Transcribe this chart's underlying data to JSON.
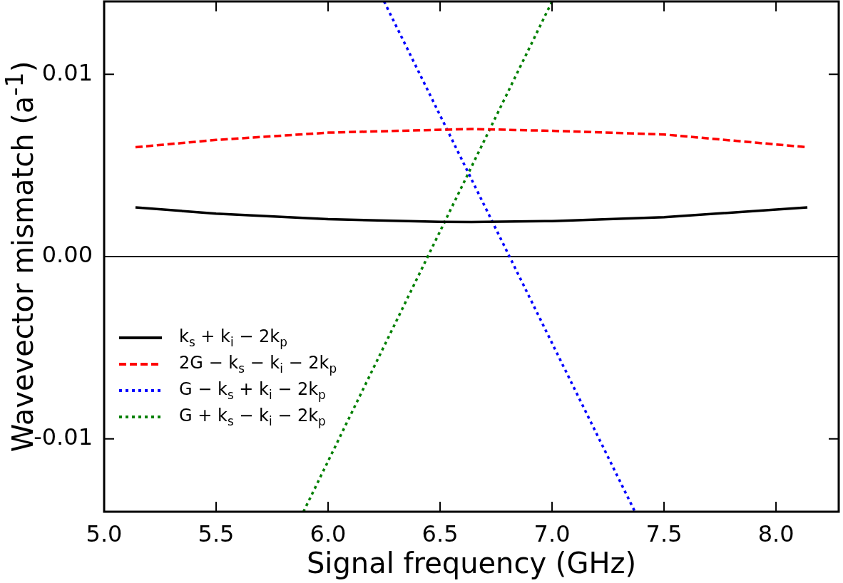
{
  "chart_data": {
    "type": "line",
    "xlabel": "Signal frequency (GHz)",
    "ylabel": "Wavevector mismatch (a$^{-1}$)",
    "xlim": [
      5.0,
      8.28
    ],
    "ylim": [
      -0.014,
      0.014
    ],
    "xticks": [
      {
        "value": 5,
        "label": "5.0"
      },
      5.5,
      {
        "value": 6,
        "label": "6.0"
      },
      6.5,
      {
        "value": 7,
        "label": "7.0"
      },
      7.5,
      {
        "value": 8,
        "label": "8.0"
      }
    ],
    "yticks": [
      -0.01,
      {
        "value": 0,
        "label": "0.00"
      },
      0.01
    ],
    "grid": false,
    "legend": "center left",
    "marker": "none",
    "ref_lines": [
      {
        "axis": "y",
        "value": 0,
        "color": "#000000",
        "line_style": "solid"
      }
    ],
    "series": [
      {
        "name": "k$_{s}$ + k$_{i}$ − 2k$_{p}$",
        "color": "#000000",
        "line_style": "solid",
        "x": [
          5.14,
          5.5,
          6.0,
          6.5,
          6.64,
          7.0,
          7.5,
          8.14
        ],
        "values": [
          0.0027,
          0.00236,
          0.00205,
          0.00191,
          0.0019,
          0.00195,
          0.00216,
          0.0027
        ]
      },
      {
        "name": "2G − k$_{s}$ − k$_{i}$ − 2k$_{p}$",
        "color": "#ff0000",
        "line_style": "dashed",
        "x": [
          5.14,
          5.5,
          6.0,
          6.64,
          7.0,
          7.5,
          8.14
        ],
        "values": [
          0.006,
          0.0064,
          0.0068,
          0.007,
          0.0069,
          0.0067,
          0.006
        ]
      },
      {
        "name": "G − k$_{s}$ + k$_{i}$ − 2k$_{p}$",
        "color": "#0000ff",
        "line_style": "dotted",
        "x": [
          6.25,
          7.37
        ],
        "values": [
          0.014,
          -0.014
        ]
      },
      {
        "name": "G + k$_{s}$ − k$_{i}$ − 2k$_{p}$",
        "color": "#008000",
        "line_style": "dotted",
        "x": [
          5.89,
          7.0
        ],
        "values": [
          -0.014,
          0.014
        ]
      }
    ]
  }
}
